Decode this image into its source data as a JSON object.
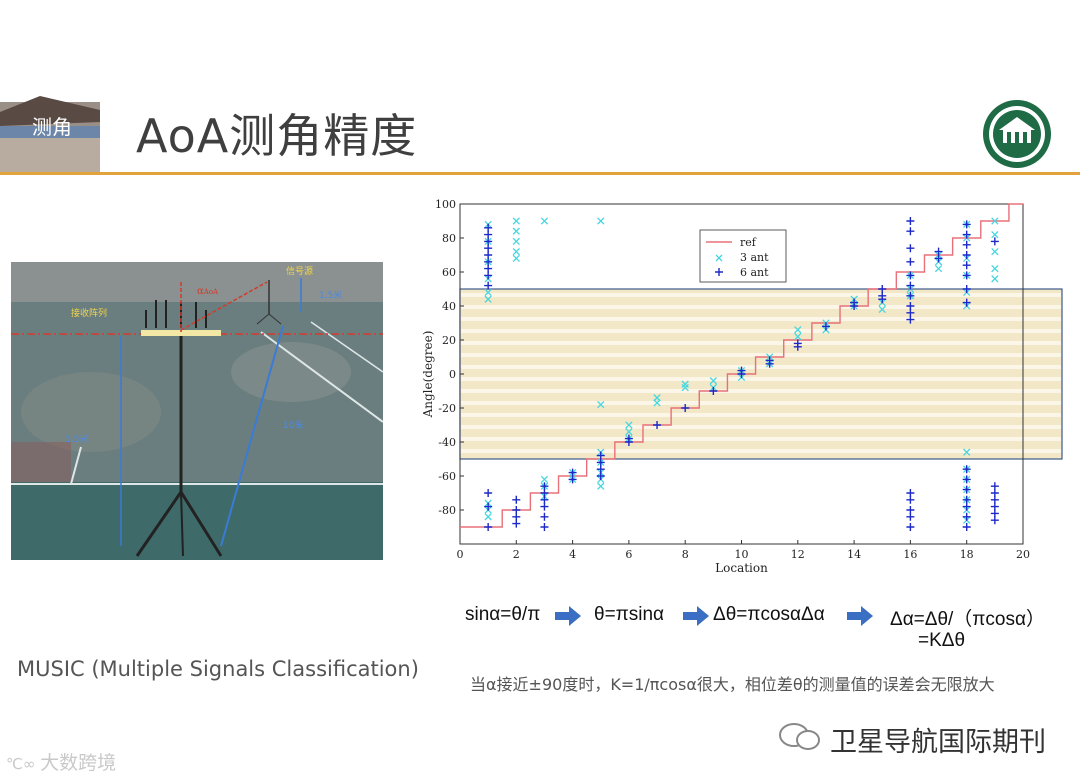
{
  "slide": {
    "title": "AoA测角精度",
    "header_image_text": "测角",
    "music_caption": "MUSIC (Multiple Signals Classification)",
    "note": "当α接近±90度时，K=1/πcosα很大，相位差θ的测量值的误差会无限放大",
    "wechat_account": "卫星导航国际期刊",
    "watermark": "大数跨境"
  },
  "formulas": [
    "sinα=θ/π",
    "θ=πsinα",
    "Δθ=πcosαΔα",
    "Δα=Δθ/（πcosα）",
    "=KΔθ"
  ],
  "photo": {
    "labels": {
      "source": "信号源",
      "array": "接收阵列",
      "angle": "α",
      "angle_sub": "AoA",
      "height_top": "1.5米",
      "height_left": "1.5米",
      "distance": "10米"
    }
  },
  "colors": {
    "accent": "#e2a23c",
    "ref": "#e8707a",
    "ant3": "#45d6e0",
    "ant6": "#1c29c8",
    "band": "#f2e7c6",
    "frame": "#3c5a8c"
  },
  "chart_data": {
    "type": "scatter",
    "xlabel": "Location",
    "ylabel": "Angle(degree)",
    "xlim": [
      0,
      20
    ],
    "ylim": [
      -100,
      100
    ],
    "xticks": [
      0,
      2,
      4,
      6,
      8,
      10,
      12,
      14,
      16,
      18,
      20
    ],
    "yticks": [
      -80,
      -60,
      -40,
      -20,
      0,
      20,
      40,
      60,
      80,
      100
    ],
    "highlight_band": [
      -50,
      50
    ],
    "legend": [
      "ref",
      "3 ant",
      "6 ant"
    ],
    "legend_position": "top-center",
    "series": [
      {
        "name": "ref",
        "type": "step-line",
        "x": [
          0,
          1,
          2,
          3,
          4,
          5,
          6,
          7,
          8,
          9,
          10,
          11,
          12,
          13,
          14,
          15,
          16,
          17,
          18,
          19,
          20
        ],
        "y": [
          -90,
          -90,
          -80,
          -70,
          -60,
          -50,
          -40,
          -30,
          -20,
          -10,
          0,
          10,
          20,
          30,
          40,
          50,
          60,
          70,
          80,
          90,
          100
        ]
      },
      {
        "name": "3 ant",
        "marker": "x",
        "points": [
          [
            1,
            -76
          ],
          [
            1,
            -80
          ],
          [
            1,
            -84
          ],
          [
            1,
            88
          ],
          [
            1,
            78
          ],
          [
            1,
            66
          ],
          [
            1,
            56
          ],
          [
            1,
            48
          ],
          [
            1,
            44
          ],
          [
            2,
            90
          ],
          [
            2,
            84
          ],
          [
            2,
            78
          ],
          [
            2,
            72
          ],
          [
            2,
            68
          ],
          [
            3,
            -62
          ],
          [
            3,
            -66
          ],
          [
            3,
            -72
          ],
          [
            3,
            90
          ],
          [
            4,
            -58
          ],
          [
            4,
            -62
          ],
          [
            5,
            90
          ],
          [
            5,
            -18
          ],
          [
            5,
            -46
          ],
          [
            5,
            -52
          ],
          [
            5,
            -58
          ],
          [
            5,
            -62
          ],
          [
            5,
            -66
          ],
          [
            6,
            -30
          ],
          [
            6,
            -34
          ],
          [
            6,
            -38
          ],
          [
            7,
            -14
          ],
          [
            7,
            -17
          ],
          [
            8,
            -6
          ],
          [
            8,
            -8
          ],
          [
            9,
            -4
          ],
          [
            9,
            -8
          ],
          [
            10,
            2
          ],
          [
            10,
            -2
          ],
          [
            11,
            6
          ],
          [
            11,
            10
          ],
          [
            12,
            22
          ],
          [
            12,
            26
          ],
          [
            13,
            26
          ],
          [
            13,
            30
          ],
          [
            14,
            40
          ],
          [
            14,
            44
          ],
          [
            15,
            38
          ],
          [
            15,
            42
          ],
          [
            16,
            46
          ],
          [
            16,
            50
          ],
          [
            16,
            58
          ],
          [
            17,
            62
          ],
          [
            17,
            66
          ],
          [
            17,
            70
          ],
          [
            18,
            -46
          ],
          [
            18,
            -56
          ],
          [
            18,
            -62
          ],
          [
            18,
            -68
          ],
          [
            18,
            -74
          ],
          [
            18,
            -80
          ],
          [
            18,
            -86
          ],
          [
            18,
            40
          ],
          [
            18,
            48
          ],
          [
            18,
            58
          ],
          [
            18,
            68
          ],
          [
            18,
            80
          ],
          [
            18,
            88
          ],
          [
            19,
            56
          ],
          [
            19,
            62
          ],
          [
            19,
            72
          ],
          [
            19,
            82
          ],
          [
            19,
            90
          ]
        ]
      },
      {
        "name": "6 ant",
        "marker": "+",
        "points": [
          [
            1,
            -70
          ],
          [
            1,
            -78
          ],
          [
            1,
            -90
          ],
          [
            1,
            52
          ],
          [
            1,
            58
          ],
          [
            1,
            62
          ],
          [
            1,
            66
          ],
          [
            1,
            70
          ],
          [
            1,
            74
          ],
          [
            1,
            78
          ],
          [
            1,
            82
          ],
          [
            1,
            86
          ],
          [
            2,
            -74
          ],
          [
            2,
            -80
          ],
          [
            2,
            -84
          ],
          [
            2,
            -88
          ],
          [
            3,
            -90
          ],
          [
            3,
            -84
          ],
          [
            3,
            -78
          ],
          [
            3,
            -74
          ],
          [
            3,
            -70
          ],
          [
            3,
            -66
          ],
          [
            4,
            -58
          ],
          [
            4,
            -62
          ],
          [
            5,
            -48
          ],
          [
            5,
            -52
          ],
          [
            5,
            -56
          ],
          [
            5,
            -60
          ],
          [
            6,
            -38
          ],
          [
            6,
            -40
          ],
          [
            7,
            -30
          ],
          [
            8,
            -20
          ],
          [
            9,
            -10
          ],
          [
            10,
            0
          ],
          [
            10,
            2
          ],
          [
            11,
            6
          ],
          [
            11,
            8
          ],
          [
            12,
            16
          ],
          [
            12,
            18
          ],
          [
            13,
            28
          ],
          [
            14,
            40
          ],
          [
            14,
            42
          ],
          [
            15,
            44
          ],
          [
            15,
            46
          ],
          [
            15,
            50
          ],
          [
            16,
            32
          ],
          [
            16,
            36
          ],
          [
            16,
            40
          ],
          [
            16,
            46
          ],
          [
            16,
            52
          ],
          [
            16,
            58
          ],
          [
            16,
            66
          ],
          [
            16,
            74
          ],
          [
            16,
            84
          ],
          [
            16,
            90
          ],
          [
            16,
            -70
          ],
          [
            16,
            -74
          ],
          [
            16,
            -80
          ],
          [
            16,
            -84
          ],
          [
            16,
            -90
          ],
          [
            17,
            68
          ],
          [
            17,
            72
          ],
          [
            18,
            42
          ],
          [
            18,
            50
          ],
          [
            18,
            58
          ],
          [
            18,
            64
          ],
          [
            18,
            70
          ],
          [
            18,
            76
          ],
          [
            18,
            82
          ],
          [
            18,
            88
          ],
          [
            18,
            -56
          ],
          [
            18,
            -62
          ],
          [
            18,
            -68
          ],
          [
            18,
            -74
          ],
          [
            18,
            -78
          ],
          [
            18,
            -84
          ],
          [
            18,
            -90
          ],
          [
            19,
            78
          ],
          [
            19,
            -66
          ],
          [
            19,
            -70
          ],
          [
            19,
            -74
          ],
          [
            19,
            -78
          ],
          [
            19,
            -82
          ],
          [
            19,
            -86
          ]
        ]
      }
    ]
  }
}
